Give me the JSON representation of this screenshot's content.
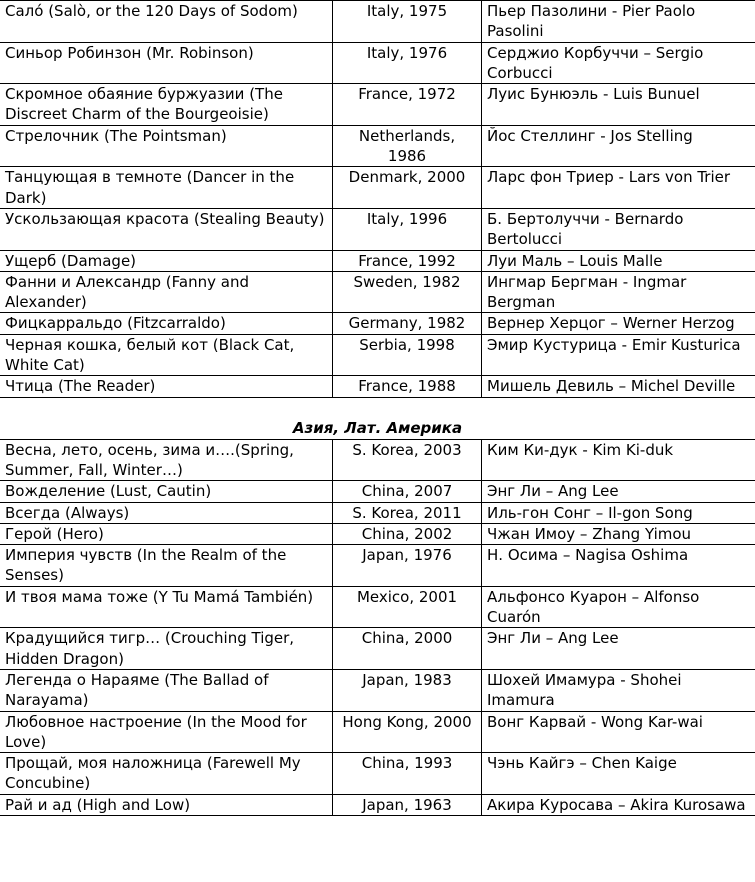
{
  "europe_rows": [
    {
      "title": "Салó (Salò, or the 120 Days of Sodom)",
      "country_year": "Italy, 1975",
      "director": "Пьер Пазолини - Pier Paolo Pasolini"
    },
    {
      "title": "Синьор Робинзон (Mr. Robinson)",
      "country_year": "Italy, 1976",
      "director": "Серджио Корбуччи – Sergio Corbucci"
    },
    {
      "title": "Скромное обаяние буржуазии (The Discreet Charm of the Bourgeoisie)",
      "country_year": "France, 1972",
      "director": "Луис Бунюэль - Luis Bunuel"
    },
    {
      "title": "Стрелочник (The Pointsman)",
      "country_year": "Netherlands, 1986",
      "director": "Йос Стеллинг - Jos Stelling"
    },
    {
      "title": "Танцующая в темноте (Dancer in the Dark)",
      "country_year": "Denmark, 2000",
      "director": "Ларс фон Триер - Lars von Trier"
    },
    {
      "title": "Ускользающая красота (Stealing Beauty)",
      "country_year": "Italy, 1996",
      "director": "Б. Бертолуччи - Bernardo Bertolucci"
    },
    {
      "title": "Ущерб (Damage)",
      "country_year": "France, 1992",
      "director": "Луи Маль – Louis Malle"
    },
    {
      "title": "Фанни и Александр (Fanny and Alexander)",
      "country_year": "Sweden, 1982",
      "director": "Ингмар Бергман - Ingmar Bergman"
    },
    {
      "title": "Фицкарральдо (Fitzcarraldo)",
      "country_year": "Germany, 1982",
      "director": "Вернер Херцог – Werner Herzog"
    },
    {
      "title": "Черная кошка, белый кот (Black Cat, White Cat)",
      "country_year": "Serbia, 1998",
      "director": "Эмир Кустурица - Emir Kusturica"
    },
    {
      "title": "Чтица (The Reader)",
      "country_year": "France, 1988",
      "director": "Мишель Девиль – Michel Deville"
    }
  ],
  "section_heading": "Азия, Лат. Америка",
  "asia_rows": [
    {
      "title": "Весна, лето, осень, зима и….(Spring, Summer, Fall, Winter…)",
      "country_year": "S. Korea, 2003",
      "director": "Ким Ки-дук - Kim Ki-duk"
    },
    {
      "title": "Вожделение (Lust, Cautin)",
      "country_year": "China, 2007",
      "director": "Энг Ли – Ang Lee"
    },
    {
      "title": "Всегда (Always)",
      "country_year": "S. Korea, 2011",
      "director": "Иль-гон Сонг – Il-gon Song"
    },
    {
      "title": "Герой (Hero)",
      "country_year": "China, 2002",
      "director": "Чжан Имоу – Zhang Yimou"
    },
    {
      "title": "Империя чувств (In the Realm of the Senses)",
      "country_year": "Japan, 1976",
      "director": "Н. Осима – Nagisa Oshima"
    },
    {
      "title": "И твоя мама тоже  (Y Tu Mamá También)",
      "country_year": "Mexico, 2001",
      "director": "Альфонсо Куарон – Alfonso Cuarón"
    },
    {
      "title": "Крадущийся тигр… (Crouching Tiger, Hidden Dragon)",
      "country_year": "China, 2000",
      "director": "Энг Ли – Ang Lee"
    },
    {
      "title": "Легенда о Нараяме (The Ballad of Narayama)",
      "country_year": "Japan, 1983",
      "director": "Шохей Имамура - Shohei Imamura"
    },
    {
      "title": "Любовное настроение (In the Mood for Love)",
      "country_year": "Hong Kong, 2000",
      "director": "Вонг Карвай - Wong Kar-wai"
    },
    {
      "title": "Прощай, моя наложница (Farewell My Concubine)",
      "country_year": "China, 1993",
      "director": "Чэнь Кайгэ – Chen Kaige"
    },
    {
      "title": "Рай и ад (High and Low)",
      "country_year": "Japan, 1963",
      "director": "Акира Куросава – Akira Kurosawa"
    }
  ]
}
